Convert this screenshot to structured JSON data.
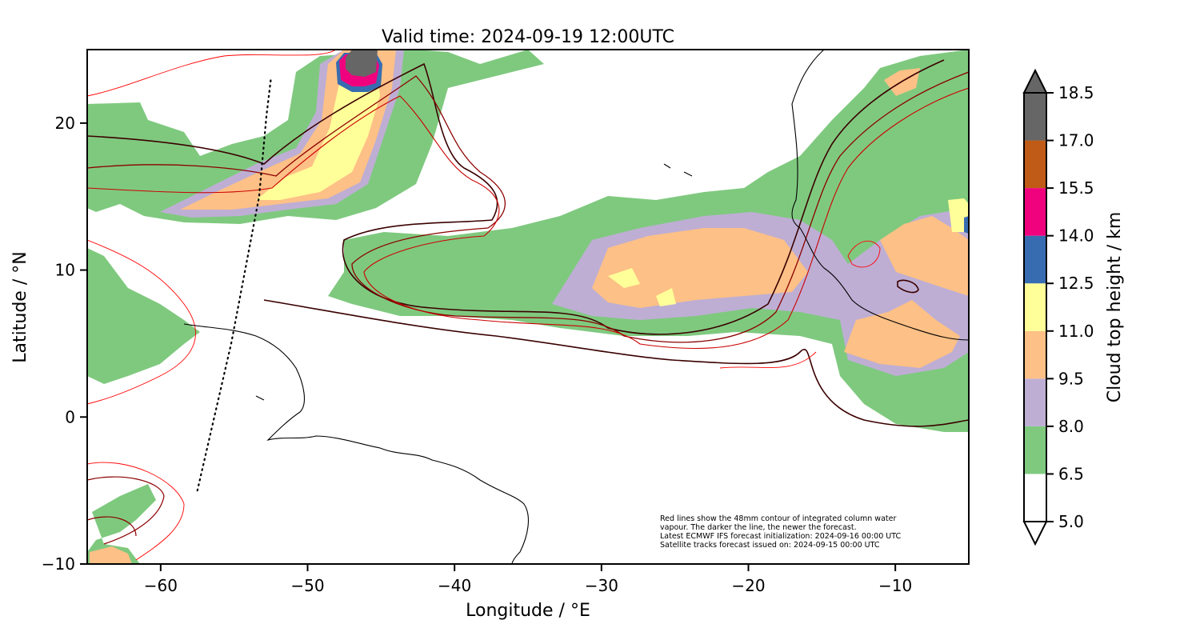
{
  "title": "Valid time: 2024-09-19 12:00UTC",
  "map": {
    "xlabel": "Longitude / °E",
    "ylabel": "Latitude / °N",
    "xlim": [
      -65,
      -5
    ],
    "ylim": [
      -10,
      25
    ],
    "xticks": [
      {
        "value": -60,
        "label": "−60"
      },
      {
        "value": -50,
        "label": "−50"
      },
      {
        "value": -40,
        "label": "−40"
      },
      {
        "value": -30,
        "label": "−30"
      },
      {
        "value": -20,
        "label": "−20"
      },
      {
        "value": -10,
        "label": "−10"
      }
    ],
    "yticks": [
      {
        "value": -10,
        "label": "−10"
      },
      {
        "value": 0,
        "label": "0"
      },
      {
        "value": 10,
        "label": "10"
      },
      {
        "value": 20,
        "label": "20"
      }
    ]
  },
  "annotation": [
    "Red lines show the 48mm contour of integrated column water",
    "vapour. The darker the line, the newer the forecast.",
    "Latest ECMWF IFS forecast initialization: 2024-09-16 00:00 UTC",
    "Satellite tracks forecast issued on: 2024-09-15 00:00 UTC"
  ],
  "colorbar": {
    "label": "Cloud top height / km",
    "levels": [
      "5.0",
      "6.5",
      "8.0",
      "9.5",
      "11.0",
      "12.5",
      "14.0",
      "15.5",
      "17.0",
      "18.5"
    ],
    "colors": [
      "#ffffff",
      "#7fc97f",
      "#beaed4",
      "#fdc086",
      "#ffff99",
      "#386cb0",
      "#f0027f",
      "#bf5b17",
      "#666666"
    ],
    "extend_colors": {
      "min": "#ffffff",
      "max": "#666666"
    }
  },
  "contour_colors": [
    "#ff0000",
    "#cc0000",
    "#8b0000",
    "#3a0000"
  ],
  "satellite_track": {
    "style": "dotted",
    "points": [
      [
        -57.5,
        -5
      ],
      [
        -55.2,
        5
      ],
      [
        -53.3,
        15
      ],
      [
        -52.8,
        20.5
      ],
      [
        -52.5,
        23
      ]
    ]
  }
}
